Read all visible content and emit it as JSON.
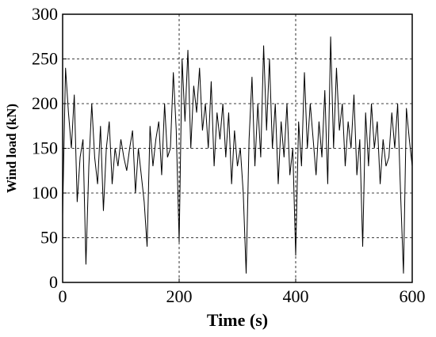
{
  "chart_data": {
    "type": "line",
    "xlabel": "Time (s)",
    "ylabel": "Wind load (kN)",
    "xlim": [
      0,
      600
    ],
    "ylim": [
      0,
      300
    ],
    "xticks": [
      "0",
      "200",
      "400",
      "600"
    ],
    "yticks": [
      "0",
      "50",
      "100",
      "150",
      "200",
      "250",
      "300"
    ],
    "grid": true,
    "line_color": "#000000",
    "series": [
      {
        "x": [
          0,
          5,
          10,
          15,
          20,
          25,
          30,
          35,
          40,
          45,
          50,
          55,
          60,
          65,
          70,
          75,
          80,
          85,
          90,
          95,
          100,
          105,
          110,
          115,
          120,
          125,
          130,
          135,
          140,
          145,
          150,
          155,
          160,
          165,
          170,
          175,
          180,
          185,
          190,
          195,
          200,
          205,
          210,
          215,
          220,
          225,
          230,
          235,
          240,
          245,
          250,
          255,
          260,
          265,
          270,
          275,
          280,
          285,
          290,
          295,
          300,
          305,
          310,
          315,
          320,
          325,
          330,
          335,
          340,
          345,
          350,
          355,
          360,
          365,
          370,
          375,
          380,
          385,
          390,
          395,
          400,
          405,
          410,
          415,
          420,
          425,
          430,
          435,
          440,
          445,
          450,
          455,
          460,
          465,
          470,
          475,
          480,
          485,
          490,
          495,
          500,
          505,
          510,
          515,
          520,
          525,
          530,
          535,
          540,
          545,
          550,
          555,
          560,
          565,
          570,
          575,
          580,
          585,
          590,
          595,
          600
        ],
        "values": [
          75,
          240,
          190,
          150,
          210,
          90,
          140,
          160,
          20,
          130,
          200,
          140,
          110,
          175,
          80,
          150,
          180,
          110,
          150,
          130,
          160,
          140,
          125,
          150,
          170,
          100,
          150,
          120,
          90,
          40,
          175,
          130,
          160,
          180,
          120,
          200,
          140,
          150,
          235,
          170,
          45,
          250,
          180,
          260,
          150,
          220,
          190,
          240,
          170,
          200,
          150,
          225,
          130,
          190,
          160,
          200,
          140,
          190,
          110,
          170,
          130,
          150,
          100,
          10,
          160,
          230,
          130,
          200,
          140,
          265,
          170,
          250,
          150,
          200,
          110,
          180,
          140,
          200,
          120,
          150,
          30,
          180,
          130,
          235,
          150,
          200,
          160,
          120,
          180,
          140,
          215,
          110,
          275,
          150,
          240,
          170,
          200,
          130,
          180,
          150,
          210,
          120,
          160,
          40,
          190,
          130,
          200,
          150,
          180,
          110,
          160,
          130,
          140,
          190,
          150,
          200,
          100,
          10,
          195,
          160,
          130
        ]
      }
    ]
  }
}
